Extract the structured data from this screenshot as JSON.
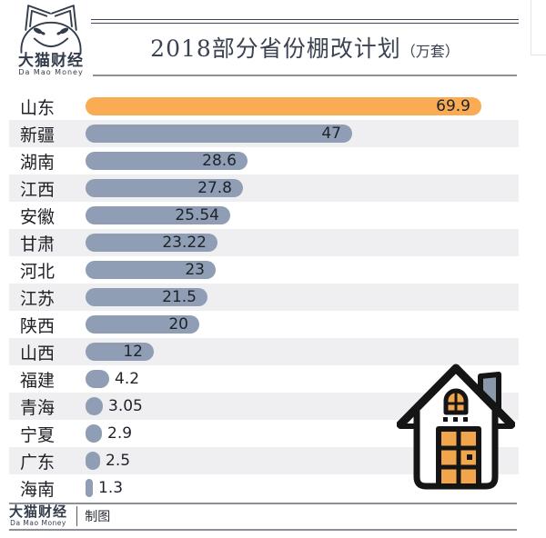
{
  "brand": {
    "logo_title": "大猫财经",
    "logo_subtitle": "Da Mao Money"
  },
  "header": {
    "title": "2018部分省份棚改计划",
    "unit": "（万套）"
  },
  "chart_data": {
    "type": "bar",
    "orientation": "horizontal",
    "title": "2018部分省份棚改计划（万套）",
    "unit": "万套",
    "categories": [
      "山东",
      "新疆",
      "湖南",
      "江西",
      "安徽",
      "甘肃",
      "河北",
      "江苏",
      "陕西",
      "山西",
      "福建",
      "青海",
      "宁夏",
      "广东",
      "海南"
    ],
    "values": [
      69.9,
      47,
      28.6,
      27.8,
      25.54,
      23.22,
      23,
      21.5,
      20,
      12,
      4.2,
      3.05,
      2.9,
      2.5,
      1.3
    ],
    "value_labels": [
      "69.9",
      "47",
      "28.6",
      "27.8",
      "25.54",
      "23.22",
      "23",
      "21.5",
      "20",
      "12",
      "4.2",
      "3.05",
      "2.9",
      "2.5",
      "1.3"
    ],
    "xlim": [
      0,
      70
    ],
    "highlight_index": 0,
    "highlight_color": "#f9ac53",
    "bar_color": "#8f9eb4",
    "stripe_color": "#efeff2",
    "grid": false,
    "legend": "none",
    "value_label_position": "inside-end, outside-end for small bars"
  },
  "icons": {
    "cat_logo": "cat-face-logo-icon",
    "house": "house-icon"
  },
  "footer": {
    "logo_title": "大猫财经",
    "logo_subtitle": "Da Mao Money",
    "credit": "制图"
  }
}
